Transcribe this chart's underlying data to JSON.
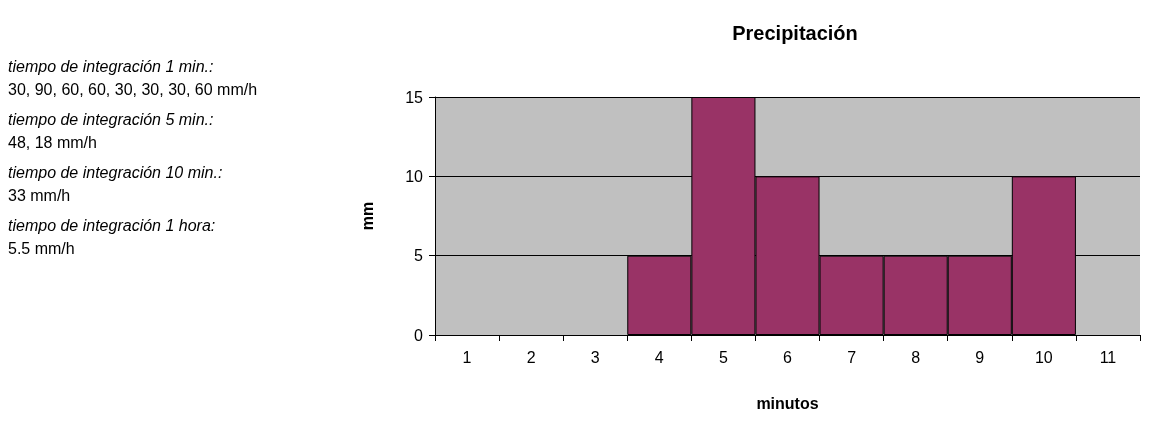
{
  "chart_data": {
    "type": "bar",
    "title": "Precipitación",
    "xlabel": "minutos",
    "ylabel": "mm",
    "categories": [
      "1",
      "2",
      "3",
      "4",
      "5",
      "6",
      "7",
      "8",
      "9",
      "10",
      "11"
    ],
    "values": [
      null,
      null,
      null,
      5,
      15,
      10,
      5,
      5,
      5,
      10,
      null
    ],
    "color": "#993366",
    "ylim": [
      0,
      15
    ],
    "yticks": [
      0,
      5,
      10,
      15
    ],
    "grid": "y",
    "annotations": [
      "tiempo de integración 1 min.:",
      "30, 90, 60, 60, 30, 30, 30, 60 mm/h",
      "tiempo de integración 5 min.:",
      "48, 18 mm/h",
      "tiempo de integración 10 min.:",
      "33 mm/h",
      "tiempo de integración 1 hora:",
      "5.5 mm/h"
    ]
  }
}
